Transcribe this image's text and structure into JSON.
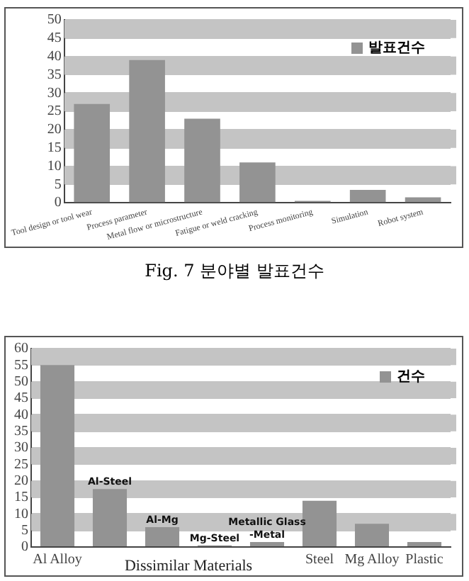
{
  "chart_data": [
    {
      "type": "bar",
      "title": "Fig. 7 분야별 발표건수",
      "categories": [
        "Tool design or tool wear",
        "Process parameter",
        "Metal flow or microstructure",
        "Fatigue or weld cracking",
        "Process monitoring",
        "Simulation",
        "Robot system"
      ],
      "series": [
        {
          "name": "발표건수",
          "color": "#939393",
          "values": [
            27,
            39,
            23,
            11,
            0.5,
            3.5,
            1.5
          ]
        }
      ],
      "ylim": [
        0,
        50
      ],
      "yticks": [
        0,
        5,
        10,
        15,
        20,
        25,
        30,
        35,
        40,
        45,
        50
      ],
      "grid": "y",
      "legend": "top right"
    },
    {
      "type": "bar",
      "categories": [
        "Al Alloy",
        null,
        null,
        null,
        null,
        "Steel",
        "Mg Alloy",
        "Plastic"
      ],
      "series": [
        {
          "name": "건수",
          "color": "#939393",
          "values": [
            55,
            17.5,
            6,
            0.5,
            1.5,
            14,
            7,
            1.5
          ],
          "value_labels": [
            null,
            "Al-Steel",
            "Al-Mg",
            "Mg-Steel",
            "Metallic Glass\n-Metal",
            null,
            null,
            null
          ]
        }
      ],
      "annotations": [
        "Dissimilar Materials"
      ],
      "ylim": [
        0,
        60
      ],
      "yticks": [
        0,
        5,
        10,
        15,
        20,
        25,
        30,
        35,
        40,
        45,
        50,
        55,
        60
      ],
      "grid": "y",
      "legend": "top right"
    }
  ]
}
